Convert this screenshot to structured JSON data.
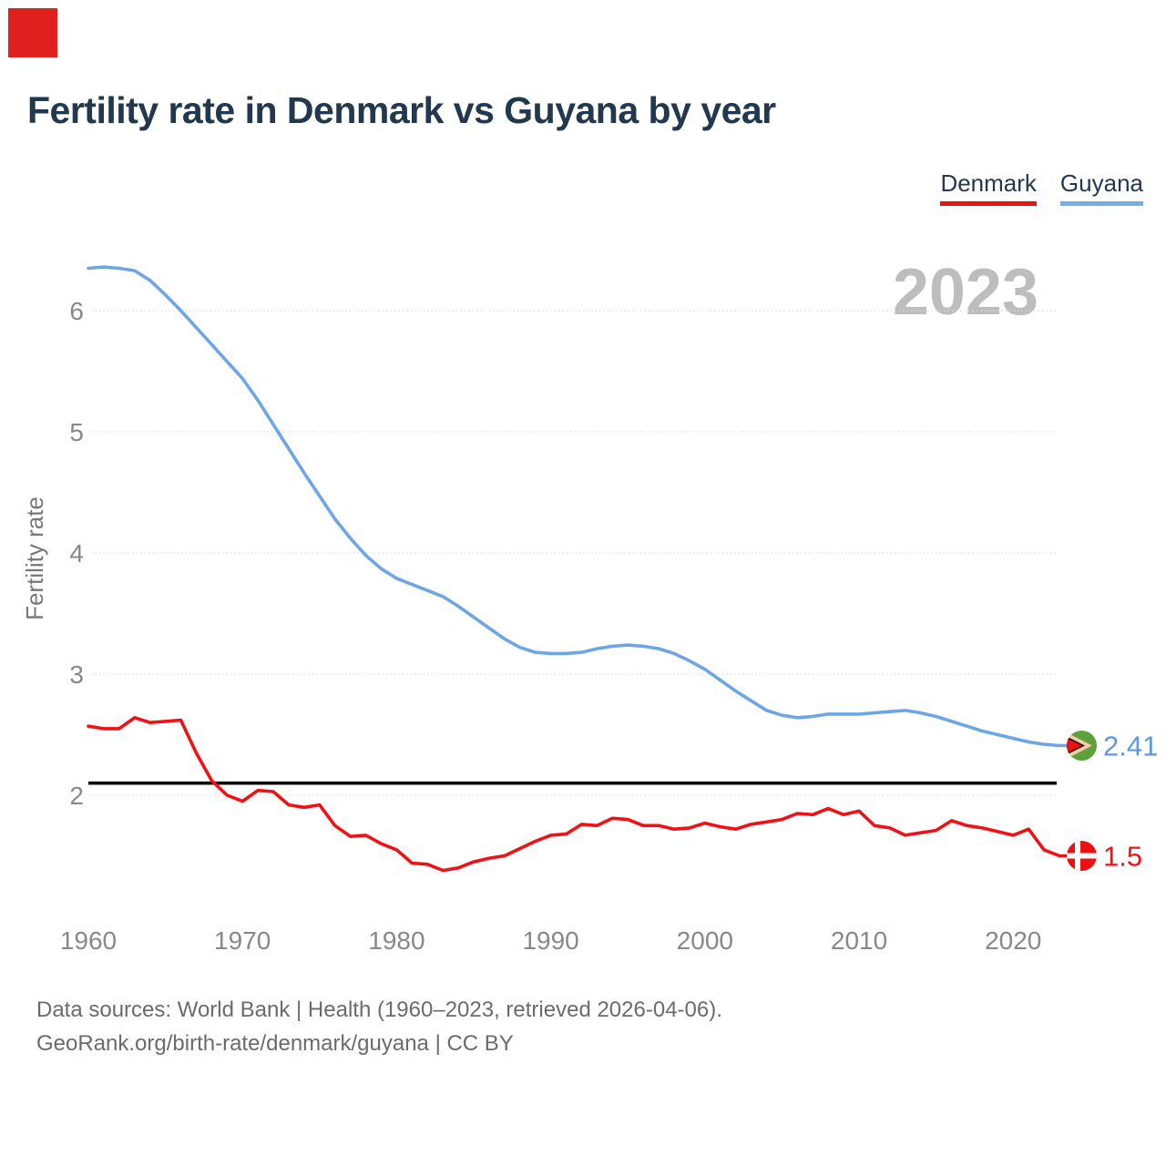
{
  "page": {
    "title": "Fertility rate in Denmark vs Guyana by year",
    "watermark": "2023",
    "footer_line1": "Data sources: World Bank | Health (1960–2023, retrieved 2026-04-06).",
    "footer_line2": "GeoRank.org/birth-rate/denmark/guyana | CC BY"
  },
  "legend": {
    "items": [
      {
        "label": "Denmark",
        "underline_color": "#ee1111"
      },
      {
        "label": "Guyana",
        "underline_color": "#74aee3"
      }
    ]
  },
  "colors": {
    "title_text": "#22384f",
    "axis_text": "#888888",
    "y_axis_label": "#777777",
    "footer_text": "#6b6b6b",
    "gridline": "#dcdcdc",
    "watermark": "#bdbdbd",
    "replacement_line": "#0a0a0a",
    "marker_red": "#e01f1f",
    "denmark_line": "#ee1115",
    "denmark_label": "#ee1115",
    "guyana_line": "#6ea6e4",
    "guyana_label": "#5b9ae2",
    "flag_green": "#5ca13c",
    "flag_peach": "#f8cba6",
    "flag_red": "#ee1111",
    "flag_black": "#111111",
    "flag_white": "#ffffff"
  },
  "chart_data": {
    "type": "line",
    "title": "Fertility rate in Denmark vs Guyana by year",
    "xlabel": "",
    "ylabel": "Fertility rate",
    "watermark": "2023",
    "grid": "horizontal-dotted",
    "legend_position": "top-right",
    "x_ticks": [
      1960,
      1970,
      1980,
      1990,
      2000,
      2010,
      2020
    ],
    "y_ticks": [
      2,
      3,
      4,
      5,
      6
    ],
    "xlim": [
      1960,
      2023
    ],
    "ylim": [
      1.2,
      6.6
    ],
    "reference_line": {
      "value": 2.1
    },
    "years": [
      1960,
      1961,
      1962,
      1963,
      1964,
      1965,
      1966,
      1967,
      1968,
      1969,
      1970,
      1971,
      1972,
      1973,
      1974,
      1975,
      1976,
      1977,
      1978,
      1979,
      1980,
      1981,
      1982,
      1983,
      1984,
      1985,
      1986,
      1987,
      1988,
      1989,
      1990,
      1991,
      1992,
      1993,
      1994,
      1995,
      1996,
      1997,
      1998,
      1999,
      2000,
      2001,
      2002,
      2003,
      2004,
      2005,
      2006,
      2007,
      2008,
      2009,
      2010,
      2011,
      2012,
      2013,
      2014,
      2015,
      2016,
      2017,
      2018,
      2019,
      2020,
      2021,
      2022,
      2023
    ],
    "series": [
      {
        "name": "Guyana",
        "flag": "guyana",
        "end_label": "2.41",
        "end_value": 2.41,
        "values": [
          6.35,
          6.36,
          6.35,
          6.33,
          6.25,
          6.13,
          6.0,
          5.86,
          5.72,
          5.58,
          5.44,
          5.26,
          5.06,
          4.86,
          4.66,
          4.47,
          4.28,
          4.12,
          3.98,
          3.87,
          3.79,
          3.74,
          3.69,
          3.64,
          3.56,
          3.47,
          3.38,
          3.29,
          3.22,
          3.18,
          3.17,
          3.17,
          3.18,
          3.21,
          3.23,
          3.24,
          3.23,
          3.21,
          3.17,
          3.11,
          3.04,
          2.95,
          2.86,
          2.78,
          2.7,
          2.66,
          2.64,
          2.65,
          2.67,
          2.67,
          2.67,
          2.68,
          2.69,
          2.7,
          2.68,
          2.65,
          2.61,
          2.57,
          2.53,
          2.5,
          2.47,
          2.44,
          2.42,
          2.41
        ]
      },
      {
        "name": "Denmark",
        "flag": "denmark",
        "end_label": "1.5",
        "end_value": 1.5,
        "values": [
          2.57,
          2.55,
          2.55,
          2.64,
          2.6,
          2.61,
          2.62,
          2.35,
          2.12,
          2.0,
          1.95,
          2.04,
          2.03,
          1.92,
          1.9,
          1.92,
          1.75,
          1.66,
          1.67,
          1.6,
          1.55,
          1.44,
          1.43,
          1.38,
          1.4,
          1.45,
          1.48,
          1.5,
          1.56,
          1.62,
          1.67,
          1.68,
          1.76,
          1.75,
          1.81,
          1.8,
          1.75,
          1.75,
          1.72,
          1.73,
          1.77,
          1.74,
          1.72,
          1.76,
          1.78,
          1.8,
          1.85,
          1.84,
          1.89,
          1.84,
          1.87,
          1.75,
          1.73,
          1.67,
          1.69,
          1.71,
          1.79,
          1.75,
          1.73,
          1.7,
          1.67,
          1.72,
          1.55,
          1.5
        ]
      }
    ]
  }
}
